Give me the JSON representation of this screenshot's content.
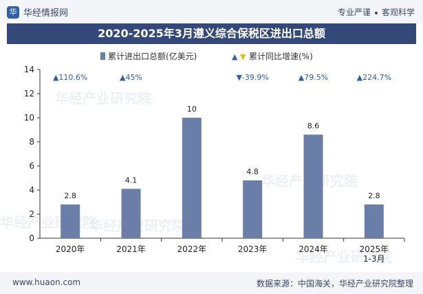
{
  "header": {
    "brand": "华经情报网",
    "slogan_left": "专业严谨",
    "slogan_right": "客观科学"
  },
  "title": "2020-2025年3月遵义综合保税区进出口总额",
  "legend": {
    "bar": "累计进出口总额(亿美元)",
    "line": "累计同比增速(%)"
  },
  "footer": {
    "site": "www.huaon.com",
    "source": "数据来源：中国海关，华经产业研究院整理"
  },
  "watermark": "华经产业研究院",
  "colors": {
    "bar": "#6a7ea8",
    "up": "#2f5fa6",
    "down": "#f0b400"
  },
  "chart_data": {
    "type": "bar",
    "categories": [
      "2020年",
      "2021年",
      "2022年",
      "2023年",
      "2024年",
      "2025年\n1-3月"
    ],
    "series": [
      {
        "name": "累计进出口总额(亿美元)",
        "values": [
          2.8,
          4.1,
          10,
          4.8,
          8.6,
          2.8
        ],
        "labels": [
          "2.8",
          "4.1",
          "10",
          "4.8",
          "8.6",
          "2.8"
        ]
      },
      {
        "name": "累计同比增速(%)",
        "values": [
          110.6,
          45,
          null,
          -39.9,
          79.5,
          224.7
        ],
        "labels": [
          "▲110.6%",
          "▲45%",
          "",
          "▼-39.9%",
          "▲79.5%",
          "▲224.7%"
        ]
      }
    ],
    "yticks": [
      "0",
      "2",
      "4",
      "6",
      "8",
      "10",
      "12",
      "14"
    ],
    "ylim": [
      0,
      14
    ]
  }
}
